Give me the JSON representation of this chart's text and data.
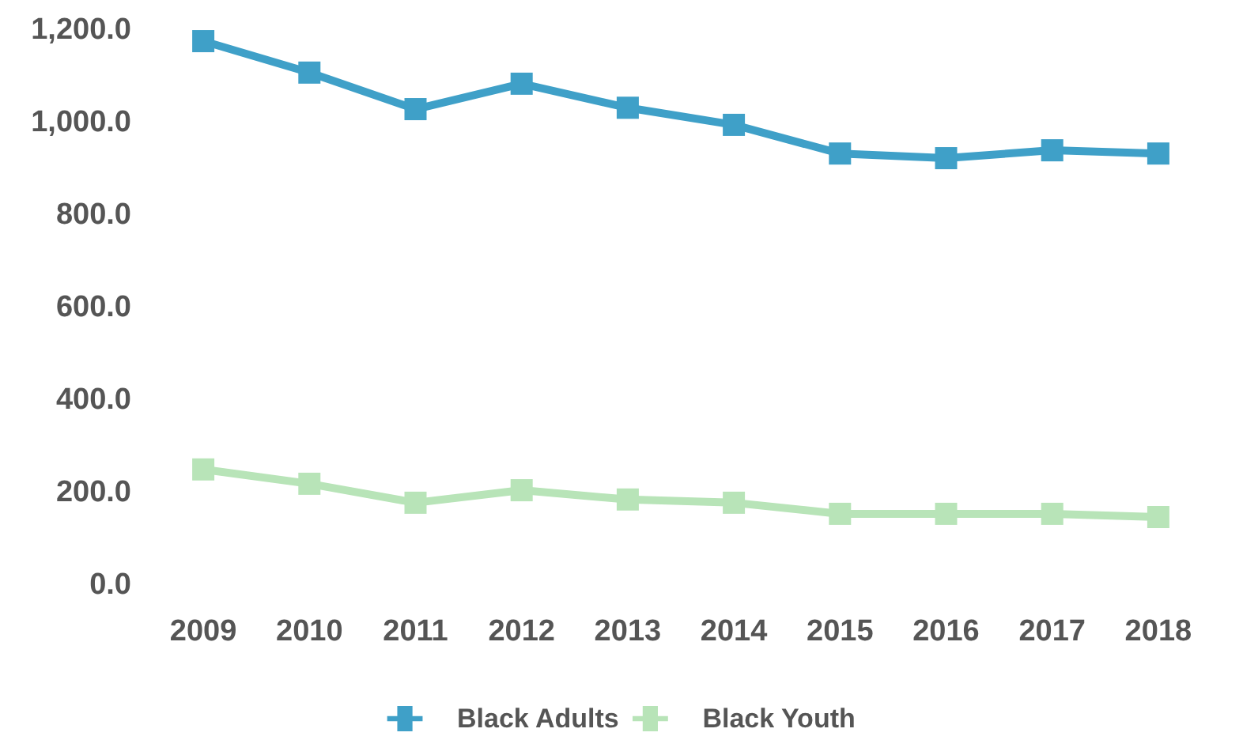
{
  "chart_data": {
    "type": "line",
    "categories": [
      "2009",
      "2010",
      "2011",
      "2012",
      "2013",
      "2014",
      "2015",
      "2016",
      "2017",
      "2018"
    ],
    "series": [
      {
        "name": "Black Adults",
        "color": "#3fa0c8",
        "values": [
          1176,
          1108,
          1029,
          1084,
          1032,
          995,
          933,
          923,
          940,
          933
        ]
      },
      {
        "name": "Black Youth",
        "color": "#b8e4b8",
        "values": [
          250,
          219,
          178,
          205,
          185,
          178,
          154,
          154,
          154,
          147
        ]
      }
    ],
    "ylim": [
      0,
      1200
    ],
    "yticks": [
      {
        "value": 0,
        "label": "0.0"
      },
      {
        "value": 200,
        "label": "200.0"
      },
      {
        "value": 400,
        "label": "400.0"
      },
      {
        "value": 600,
        "label": "600.0"
      },
      {
        "value": 800,
        "label": "800.0"
      },
      {
        "value": 1000,
        "label": "1,000.0"
      },
      {
        "value": 1200,
        "label": "1,200.0"
      }
    ],
    "grid": false,
    "legend": "bottom",
    "marker": "square",
    "line_style": "solid"
  }
}
